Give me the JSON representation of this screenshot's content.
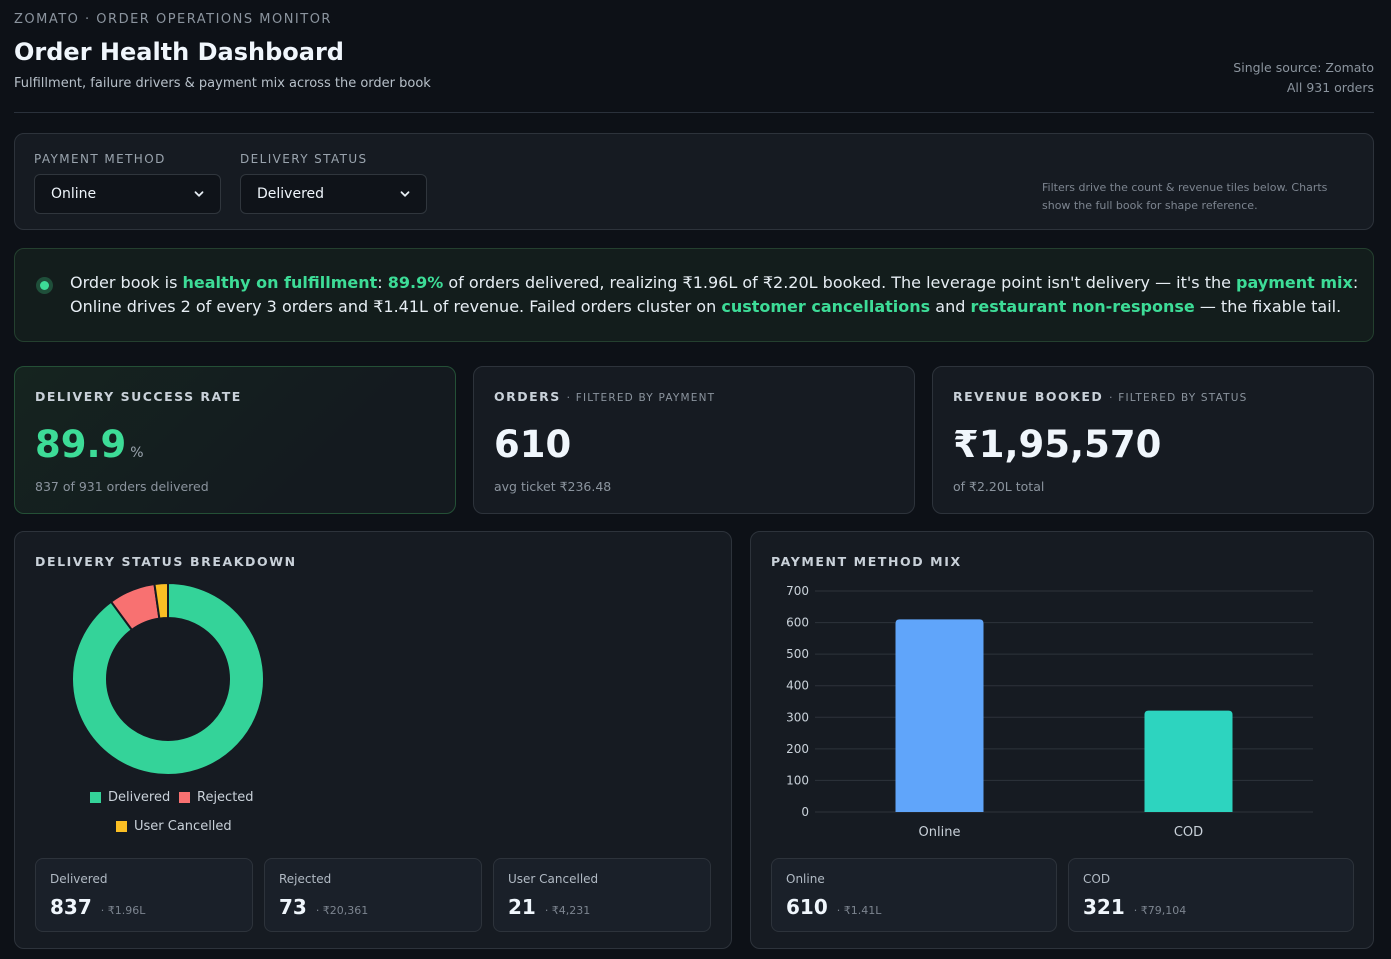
{
  "header": {
    "eyebrow": "ZOMATO · ORDER OPERATIONS MONITOR",
    "title": "Order Health Dashboard",
    "subtitle": "Fulfillment, failure drivers & payment mix across the order book",
    "source_line1": "Single source: Zomato",
    "source_line2": "All 931 orders"
  },
  "filters": {
    "payment_label": "PAYMENT METHOD",
    "payment_value": "Online",
    "status_label": "DELIVERY STATUS",
    "status_value": "Delivered",
    "note": "Filters drive the count & revenue tiles below. Charts show the full book for shape reference."
  },
  "insight": {
    "t1": "Order book is ",
    "h1": "healthy on fulfillment",
    "t2": ": ",
    "h2": "89.9%",
    "t3": " of orders delivered, realizing ₹1.96L of ₹2.20L booked. The leverage point isn't delivery — it's the ",
    "h3": "payment mix",
    "t4": ": Online drives 2 of every 3 orders and ₹1.41L of revenue. Failed orders cluster on ",
    "h4": "customer cancellations",
    "t5": " and ",
    "h5": "restaurant non-response",
    "t6": " — the fixable tail."
  },
  "kpis": {
    "success": {
      "label": "DELIVERY SUCCESS RATE",
      "value": "89.9",
      "unit": "%",
      "note": "837 of 931 orders delivered"
    },
    "orders": {
      "label": "ORDERS",
      "sub": "· FILTERED BY PAYMENT",
      "value": "610",
      "note": "avg ticket ₹236.48"
    },
    "revenue": {
      "label": "REVENUE BOOKED",
      "sub": "· FILTERED BY STATUS",
      "value": "₹1,95,570",
      "note": "of ₹2.20L total"
    }
  },
  "status_panel": {
    "title": "DELIVERY STATUS BREAKDOWN",
    "cards": [
      {
        "label": "Delivered",
        "value": "837",
        "sub": "· ₹1.96L"
      },
      {
        "label": "Rejected",
        "value": "73",
        "sub": "· ₹20,361"
      },
      {
        "label": "User Cancelled",
        "value": "21",
        "sub": "· ₹4,231"
      }
    ]
  },
  "payment_panel": {
    "title": "PAYMENT METHOD MIX",
    "cards": [
      {
        "label": "Online",
        "value": "610",
        "sub": "· ₹1.41L"
      },
      {
        "label": "COD",
        "value": "321",
        "sub": "· ₹79,104"
      }
    ]
  },
  "chart_data": [
    {
      "type": "pie",
      "categories": [
        "Delivered",
        "Rejected",
        "User Cancelled"
      ],
      "values": [
        837,
        73,
        21
      ],
      "colors": [
        "#34d399",
        "#f87171",
        "#fbbf24"
      ],
      "legend": "bottom",
      "donut": true
    },
    {
      "type": "bar",
      "categories": [
        "Online",
        "COD"
      ],
      "values": [
        610,
        321
      ],
      "colors": [
        "#60a5fa",
        "#2dd4bf"
      ],
      "ylim": [
        0,
        700
      ],
      "yticks": [
        "0",
        "100",
        "200",
        "300",
        "400",
        "500",
        "600",
        "700"
      ],
      "grid": true
    }
  ]
}
